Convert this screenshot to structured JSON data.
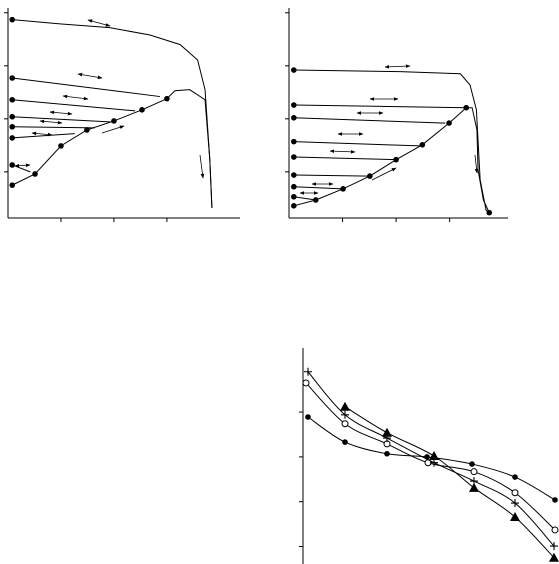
{
  "chart_data": [
    {
      "type": "line",
      "xlim": [
        0,
        4.38
      ],
      "ylim": [
        0.13,
        4.09
      ],
      "xticks": [
        1,
        2,
        3
      ],
      "yticks": [
        1,
        2,
        3,
        4
      ],
      "series": [
        {
          "color": "#000000",
          "marker": "dot",
          "x": [
            0.08,
            0.51,
            1.0,
            1.49,
            2.0,
            2.53,
            3.0
          ],
          "values": [
            0.75,
            0.96,
            1.49,
            1.79,
            1.96,
            2.17,
            2.38
          ]
        },
        {
          "color": "#000000",
          "marker": "none",
          "x": [
            3.0,
            3.15,
            3.43,
            3.72,
            3.81,
            3.85
          ],
          "values": [
            2.38,
            2.53,
            2.55,
            2.36,
            1.23,
            0.32
          ]
        },
        {
          "color": "#000000",
          "marker": "none",
          "x": [
            0.08,
            0.98,
            1.92,
            2.68,
            3.25,
            3.58,
            3.72,
            3.81,
            3.85
          ],
          "values": [
            3.87,
            3.79,
            3.72,
            3.58,
            3.4,
            3.11,
            2.55,
            1.23,
            0.32
          ]
        },
        {
          "color": "#000000",
          "marker": "none",
          "x": [
            0.08,
            2.87
          ],
          "values": [
            2.77,
            2.42
          ]
        },
        {
          "color": "#000000",
          "marker": "none",
          "x": [
            0.08,
            2.4
          ],
          "values": [
            2.36,
            2.15
          ]
        },
        {
          "color": "#000000",
          "marker": "none",
          "x": [
            0.08,
            1.96
          ],
          "values": [
            2.04,
            1.94
          ]
        },
        {
          "color": "#000000",
          "marker": "none",
          "x": [
            0.08,
            1.64
          ],
          "values": [
            1.85,
            1.83
          ]
        },
        {
          "color": "#000000",
          "marker": "none",
          "x": [
            0.08,
            1.26
          ],
          "values": [
            1.64,
            1.72
          ]
        },
        {
          "color": "#000000",
          "marker": "none",
          "x": [
            0.08,
            0.42
          ],
          "values": [
            1.13,
            1.0
          ]
        },
        {
          "color": "#000000",
          "marker": "dot-only",
          "x": [
            0.08,
            0.08,
            0.08,
            0.08,
            0.08,
            0.08,
            0.08
          ],
          "values": [
            3.87,
            2.77,
            2.36,
            2.04,
            1.85,
            1.64,
            1.13
          ]
        }
      ]
    },
    {
      "type": "line",
      "xlim": [
        0,
        4.09
      ],
      "ylim": [
        0.13,
        4.09
      ],
      "xticks": [
        1,
        2,
        3
      ],
      "yticks": [
        1,
        2,
        3,
        4
      ],
      "series": [
        {
          "color": "#000000",
          "marker": "dot",
          "x": [
            0.09,
            0.5,
            1.01,
            1.51,
            2.0,
            2.49,
            2.99,
            3.31
          ],
          "values": [
            0.36,
            0.47,
            0.68,
            0.92,
            1.23,
            1.51,
            1.92,
            2.21
          ]
        },
        {
          "color": "#000000",
          "marker": "none",
          "x": [
            3.31,
            3.42,
            3.51,
            3.53,
            3.63,
            3.74
          ],
          "values": [
            2.21,
            2.21,
            1.79,
            1.04,
            0.47,
            0.23
          ]
        },
        {
          "color": "#000000",
          "marker": "none",
          "x": [
            0.09,
            2.07,
            3.2,
            3.38,
            3.5,
            3.53,
            3.57,
            3.68,
            3.74
          ],
          "values": [
            2.92,
            2.89,
            2.85,
            2.64,
            2.17,
            1.6,
            0.85,
            0.28,
            0.23
          ]
        },
        {
          "color": "#000000",
          "marker": "none",
          "x": [
            0.09,
            3.31
          ],
          "values": [
            2.26,
            2.21
          ]
        },
        {
          "color": "#000000",
          "marker": "none",
          "x": [
            0.09,
            2.92
          ],
          "values": [
            2.02,
            1.92
          ]
        },
        {
          "color": "#000000",
          "marker": "none",
          "x": [
            0.09,
            2.45
          ],
          "values": [
            1.57,
            1.49
          ]
        },
        {
          "color": "#000000",
          "marker": "none",
          "x": [
            0.09,
            2.0
          ],
          "values": [
            1.28,
            1.23
          ]
        },
        {
          "color": "#000000",
          "marker": "none",
          "x": [
            0.09,
            1.51
          ],
          "values": [
            0.94,
            0.92
          ]
        },
        {
          "color": "#000000",
          "marker": "none",
          "x": [
            0.09,
            1.01
          ],
          "values": [
            0.72,
            0.68
          ]
        },
        {
          "color": "#000000",
          "marker": "none",
          "x": [
            0.09,
            0.5
          ],
          "values": [
            0.53,
            0.47
          ]
        },
        {
          "color": "#000000",
          "marker": "dot-only",
          "x": [
            0.09,
            0.09,
            0.09,
            0.09,
            0.09,
            0.09,
            0.09,
            0.09,
            3.74
          ],
          "values": [
            2.92,
            2.26,
            2.02,
            1.57,
            1.28,
            0.94,
            0.72,
            0.53,
            0.23
          ]
        }
      ]
    },
    {
      "type": "line",
      "xlim": [
        0,
        5.12
      ],
      "ylim": [
        -2.39,
        2.43
      ],
      "yticks": [
        -2,
        -1,
        0,
        1
      ],
      "smooth": true,
      "series": [
        {
          "color": "#000000",
          "marker": "dot",
          "x": [
            0.1,
            0.84,
            1.68,
            2.48,
            3.38,
            4.24,
            5.04
          ],
          "values": [
            0.89,
            0.33,
            0.07,
            0,
            -0.16,
            -0.45,
            -0.96
          ]
        },
        {
          "color": "#000000",
          "marker": "circle",
          "x": [
            0.06,
            0.84,
            1.68,
            2.5,
            3.42,
            4.24,
            5.04
          ],
          "values": [
            1.65,
            0.74,
            0.29,
            -0.13,
            -0.33,
            -0.8,
            -1.63
          ]
        },
        {
          "color": "#000000",
          "marker": "plus",
          "x": [
            0.1,
            0.84,
            1.68,
            2.62,
            3.42,
            4.24,
            5.02
          ],
          "values": [
            1.9,
            0.94,
            0.42,
            -0.13,
            -0.54,
            -1.03,
            -1.99
          ]
        },
        {
          "color": "#000000",
          "marker": "triangle",
          "x": [
            0.84,
            1.68,
            2.62,
            3.42,
            4.24,
            5.02
          ],
          "values": [
            1.12,
            0.54,
            0.02,
            -0.69,
            -1.34,
            -2.25
          ]
        }
      ]
    }
  ]
}
